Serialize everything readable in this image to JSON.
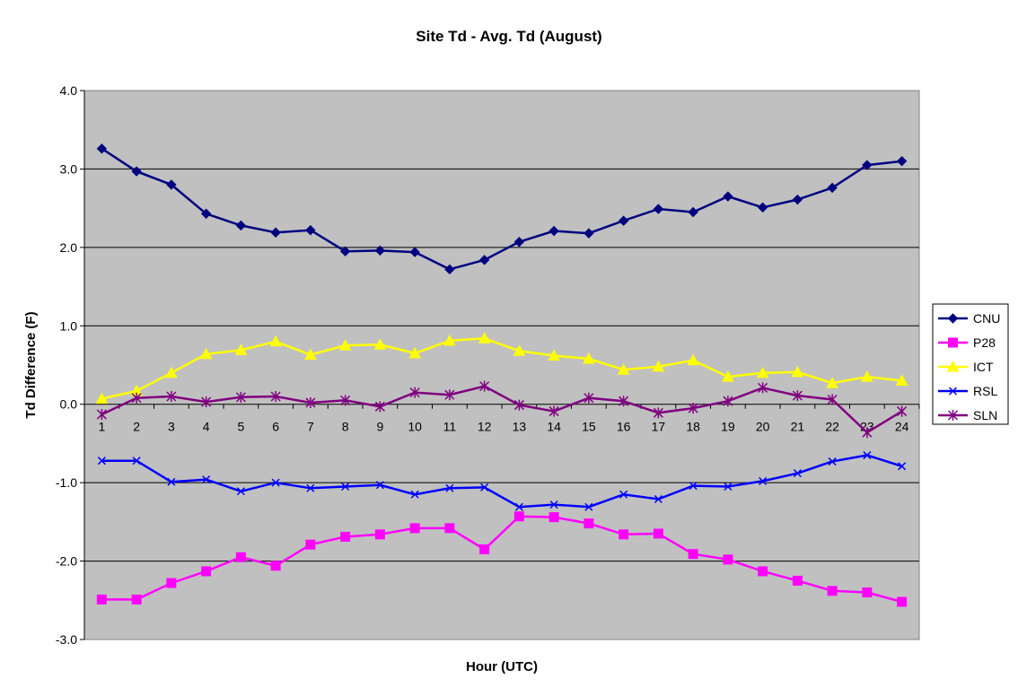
{
  "chart_data": {
    "type": "line",
    "title": "Site Td - Avg. Td (August)",
    "xlabel": "Hour (UTC)",
    "ylabel": "Td Difference (F)",
    "ylim": [
      -3.0,
      4.0
    ],
    "yticks": [
      "-3.0",
      "-2.0",
      "-1.0",
      "0.0",
      "1.0",
      "2.0",
      "3.0",
      "4.0"
    ],
    "yticks_values": [
      -3,
      -2,
      -1,
      0,
      1,
      2,
      3,
      4
    ],
    "categories": [
      "1",
      "2",
      "3",
      "4",
      "5",
      "6",
      "7",
      "8",
      "9",
      "10",
      "11",
      "12",
      "13",
      "14",
      "15",
      "16",
      "17",
      "18",
      "19",
      "20",
      "21",
      "22",
      "23",
      "24"
    ],
    "grid": "horizontal major gridlines",
    "legend_position": "right",
    "plot_background": "#c0c0c0",
    "series": [
      {
        "name": "CNU",
        "color": "#000080",
        "marker": "diamond",
        "values": [
          3.26,
          2.97,
          2.8,
          2.43,
          2.28,
          2.19,
          2.22,
          1.95,
          1.96,
          1.94,
          1.72,
          1.84,
          2.07,
          2.21,
          2.18,
          2.34,
          2.49,
          2.45,
          2.65,
          2.51,
          2.61,
          2.76,
          3.05,
          3.1
        ]
      },
      {
        "name": "P28",
        "color": "#ff00ff",
        "marker": "square",
        "values": [
          -2.49,
          -2.49,
          -2.28,
          -2.13,
          -1.95,
          -2.06,
          -1.79,
          -1.69,
          -1.66,
          -1.58,
          -1.58,
          -1.85,
          -1.43,
          -1.44,
          -1.52,
          -1.66,
          -1.65,
          -1.91,
          -1.98,
          -2.13,
          -2.25,
          -2.38,
          -2.4,
          -2.52
        ]
      },
      {
        "name": "ICT",
        "color": "#ffff00",
        "marker": "triangle",
        "values": [
          0.07,
          0.17,
          0.4,
          0.64,
          0.69,
          0.8,
          0.63,
          0.75,
          0.76,
          0.65,
          0.81,
          0.84,
          0.68,
          0.62,
          0.58,
          0.44,
          0.48,
          0.56,
          0.35,
          0.4,
          0.41,
          0.27,
          0.35,
          0.3
        ]
      },
      {
        "name": "RSL",
        "color": "#0000ff",
        "marker": "x",
        "values": [
          -0.72,
          -0.72,
          -0.99,
          -0.96,
          -1.11,
          -1.0,
          -1.07,
          -1.05,
          -1.03,
          -1.15,
          -1.07,
          -1.06,
          -1.31,
          -1.28,
          -1.31,
          -1.15,
          -1.21,
          -1.04,
          -1.05,
          -0.98,
          -0.88,
          -0.73,
          -0.65,
          -0.79
        ]
      },
      {
        "name": "SLN",
        "color": "#800080",
        "marker": "star",
        "values": [
          -0.13,
          0.08,
          0.1,
          0.03,
          0.09,
          0.1,
          0.02,
          0.05,
          -0.03,
          0.15,
          0.12,
          0.23,
          -0.01,
          -0.09,
          0.08,
          0.04,
          -0.11,
          -0.05,
          0.04,
          0.21,
          0.11,
          0.06,
          -0.36,
          -0.09
        ]
      }
    ]
  }
}
